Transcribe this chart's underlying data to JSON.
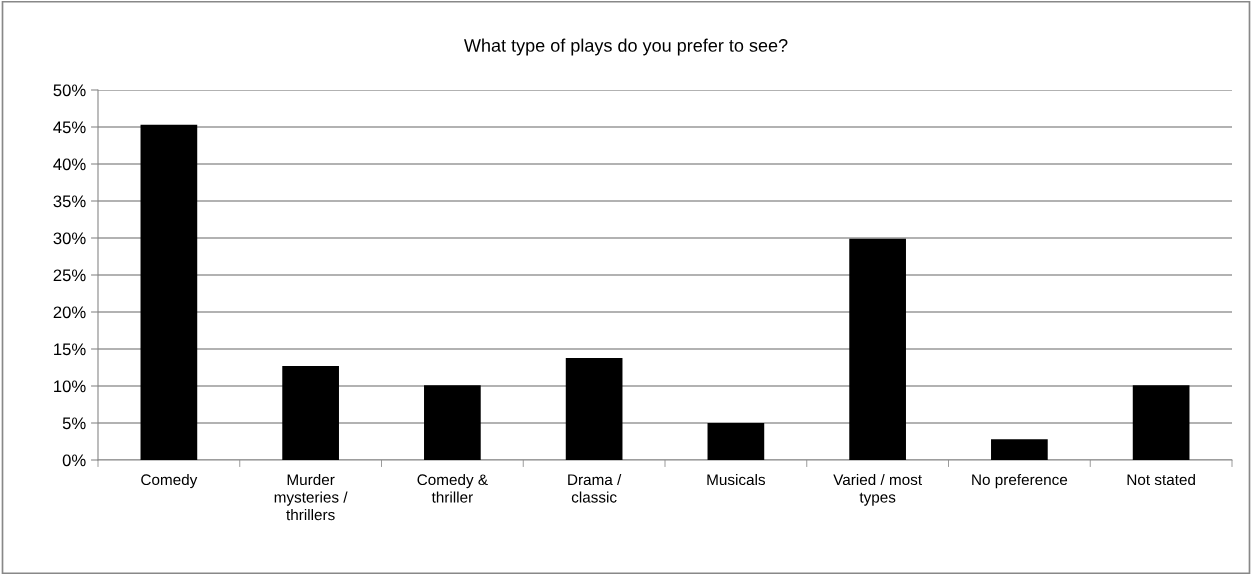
{
  "chart_data": {
    "type": "bar",
    "title": "What type of plays do you prefer to see?",
    "categories": [
      "Comedy",
      "Murder\nmysteries /\nthrillers",
      "Comedy &\nthriller",
      "Drama /\nclassic",
      "Musicals",
      "Varied / most\ntypes",
      "No preference",
      "Not stated"
    ],
    "values": [
      45.3,
      12.7,
      10.1,
      13.8,
      5.0,
      29.9,
      2.8,
      10.1
    ],
    "color": "#000000",
    "ylim": [
      0,
      50
    ],
    "yticks": [
      {
        "value": 0,
        "label": "0%"
      },
      {
        "value": 5,
        "label": "5%"
      },
      {
        "value": 10,
        "label": "10%"
      },
      {
        "value": 15,
        "label": "15%"
      },
      {
        "value": 20,
        "label": "20%"
      },
      {
        "value": 25,
        "label": "25%"
      },
      {
        "value": 30,
        "label": "30%"
      },
      {
        "value": 35,
        "label": "35%"
      },
      {
        "value": 40,
        "label": "40%"
      },
      {
        "value": 45,
        "label": "45%"
      },
      {
        "value": 50,
        "label": "50%"
      }
    ],
    "grid": "y",
    "legend": false
  }
}
